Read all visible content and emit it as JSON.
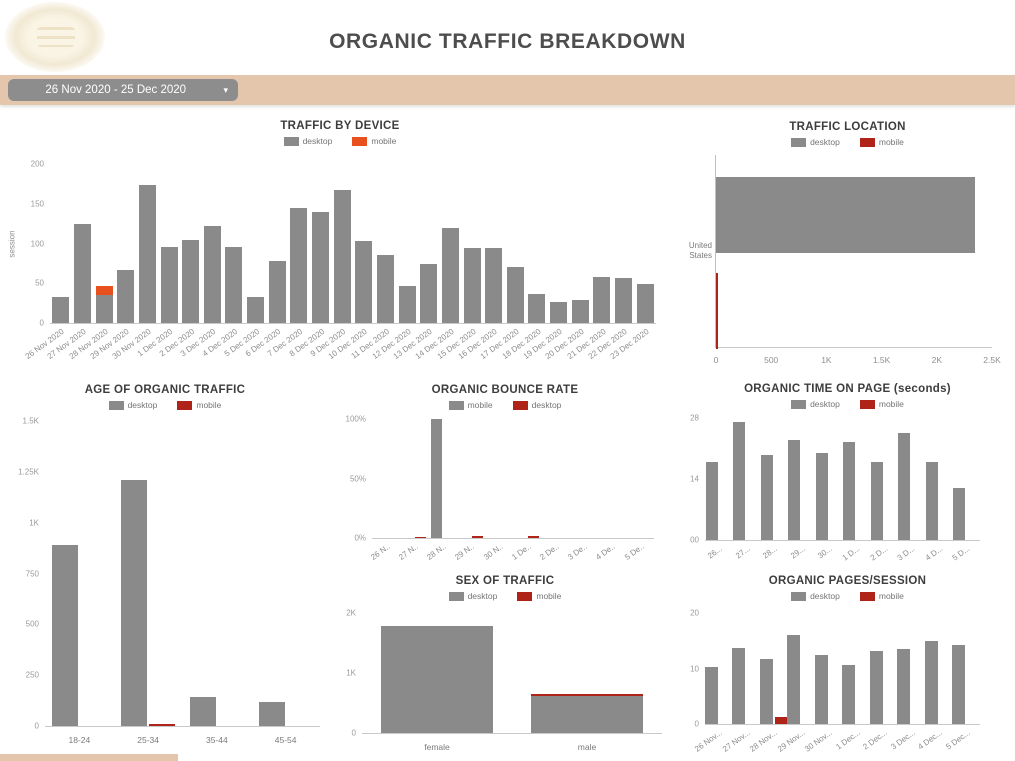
{
  "header": {
    "title": "ORGANIC TRAFFIC BREAKDOWN",
    "date_range": {
      "label": "26 Nov 2020 - 25 Dec 2020",
      "caret_icon": "▾"
    }
  },
  "colors": {
    "desktop_gray": "#8a8a8a",
    "mobile_orange": "#e8511e",
    "mobile_red": "#b02318",
    "band_tan": "#e3c6ac"
  },
  "chart_data": [
    {
      "id": "traffic_by_device",
      "type": "bar",
      "mode": "stacked",
      "title": "TRAFFIC BY DEVICE",
      "ylabel": "session",
      "ylim": [
        0,
        200
      ],
      "yticks": [
        {
          "label": "0",
          "v": 0
        },
        {
          "label": "50",
          "v": 50
        },
        {
          "label": "100",
          "v": 100
        },
        {
          "label": "150",
          "v": 150
        },
        {
          "label": "200",
          "v": 200
        }
      ],
      "categories": [
        "26 Nov 2020",
        "27 Nov 2020",
        "28 Nov 2020",
        "29 Nov 2020",
        "30 Nov 2020",
        "1 Dec 2020",
        "2 Dec 2020",
        "3 Dec 2020",
        "4 Dec 2020",
        "5 Dec 2020",
        "6 Dec 2020",
        "7 Dec 2020",
        "8 Dec 2020",
        "9 Dec 2020",
        "10 Dec 2020",
        "11 Dec 2020",
        "12 Dec 2020",
        "13 Dec 2020",
        "14 Dec 2020",
        "15 Dec 2020",
        "16 Dec 2020",
        "17 Dec 2020",
        "18 Dec 2020",
        "19 Dec 2020",
        "20 Dec 2020",
        "21 Dec 2020",
        "22 Dec 2020",
        "23 Dec 2020"
      ],
      "legend": [
        {
          "label": "desktop",
          "color": "#8a8a8a"
        },
        {
          "label": "mobile",
          "color": "#e8511e"
        }
      ],
      "series": [
        {
          "name": "desktop",
          "color": "#8a8a8a",
          "values": [
            33,
            125,
            35,
            67,
            174,
            96,
            105,
            122,
            96,
            33,
            78,
            145,
            140,
            167,
            103,
            85,
            46,
            74,
            120,
            94,
            94,
            70,
            37,
            26,
            29,
            58,
            57,
            49
          ]
        },
        {
          "name": "mobile",
          "color": "#e8511e",
          "values": [
            0,
            0,
            12,
            0,
            0,
            0,
            0,
            0,
            0,
            0,
            0,
            0,
            0,
            0,
            0,
            0,
            0,
            0,
            0,
            0,
            0,
            0,
            0,
            0,
            0,
            0,
            0,
            0
          ]
        }
      ]
    },
    {
      "id": "traffic_location",
      "type": "bar_horizontal",
      "title": "TRAFFIC LOCATION",
      "categories": [
        "United States"
      ],
      "xlim": [
        0,
        2500
      ],
      "xticks": [
        {
          "label": "0",
          "v": 0
        },
        {
          "label": "500",
          "v": 500
        },
        {
          "label": "1K",
          "v": 1000
        },
        {
          "label": "1.5K",
          "v": 1500
        },
        {
          "label": "2K",
          "v": 2000
        },
        {
          "label": "2.5K",
          "v": 2500
        }
      ],
      "legend": [
        {
          "label": "desktop",
          "color": "#8a8a8a"
        },
        {
          "label": "mobile",
          "color": "#b02318"
        }
      ],
      "series": [
        {
          "name": "desktop",
          "color": "#8a8a8a",
          "values": [
            2350
          ]
        },
        {
          "name": "mobile",
          "color": "#b02318",
          "values": [
            15
          ]
        }
      ]
    },
    {
      "id": "age_of_organic_traffic",
      "type": "bar",
      "mode": "grouped",
      "title": "AGE OF ORGANIC TRAFFIC",
      "ylim": [
        0,
        1500
      ],
      "yticks": [
        {
          "label": "0",
          "v": 0
        },
        {
          "label": "250",
          "v": 250
        },
        {
          "label": "500",
          "v": 500
        },
        {
          "label": "750",
          "v": 750
        },
        {
          "label": "1K",
          "v": 1000
        },
        {
          "label": "1.25K",
          "v": 1250
        },
        {
          "label": "1.5K",
          "v": 1500
        }
      ],
      "categories": [
        "18-24",
        "25-34",
        "35-44",
        "45-54"
      ],
      "legend": [
        {
          "label": "desktop",
          "color": "#8a8a8a"
        },
        {
          "label": "mobile",
          "color": "#b02318"
        }
      ],
      "series": [
        {
          "name": "desktop",
          "color": "#8a8a8a",
          "values": [
            890,
            1210,
            145,
            120
          ]
        },
        {
          "name": "mobile",
          "color": "#b02318",
          "values": [
            0,
            12,
            0,
            0
          ]
        }
      ]
    },
    {
      "id": "organic_bounce_rate",
      "type": "bar",
      "mode": "grouped",
      "title": "ORGANIC BOUNCE RATE",
      "ylim": [
        0,
        100
      ],
      "yticks": [
        {
          "label": "0%",
          "v": 0
        },
        {
          "label": "50%",
          "v": 50
        },
        {
          "label": "100%",
          "v": 100
        }
      ],
      "categories": [
        "26 N..",
        "27 N..",
        "28 N..",
        "29 N..",
        "30 N..",
        "1 De..",
        "2 De..",
        "3 De..",
        "4 De..",
        "5 De.."
      ],
      "legend": [
        {
          "label": "mobile",
          "color": "#8a8a8a"
        },
        {
          "label": "desktop",
          "color": "#b02318"
        }
      ],
      "series": [
        {
          "name": "mobile",
          "color": "#8a8a8a",
          "values": [
            0,
            0,
            100,
            0,
            0,
            0,
            0,
            0,
            0,
            0
          ]
        },
        {
          "name": "desktop",
          "color": "#b02318",
          "values": [
            0,
            0.8,
            0,
            1.5,
            0,
            2,
            0,
            0,
            0,
            0
          ]
        }
      ]
    },
    {
      "id": "sex_of_traffic",
      "type": "bar",
      "mode": "stacked",
      "title": "SEX OF TRAFFIC",
      "ylim": [
        0,
        2000
      ],
      "yticks": [
        {
          "label": "0",
          "v": 0
        },
        {
          "label": "1K",
          "v": 1000
        },
        {
          "label": "2K",
          "v": 2000
        }
      ],
      "categories": [
        "female",
        "male"
      ],
      "legend": [
        {
          "label": "desktop",
          "color": "#8a8a8a"
        },
        {
          "label": "mobile",
          "color": "#b02318"
        }
      ],
      "series": [
        {
          "name": "desktop",
          "color": "#8a8a8a",
          "values": [
            1780,
            620
          ]
        },
        {
          "name": "mobile",
          "color": "#b02318",
          "values": [
            0,
            25
          ]
        }
      ]
    },
    {
      "id": "organic_time_on_page",
      "type": "bar",
      "mode": "grouped",
      "title": "ORGANIC TIME ON PAGE (seconds)",
      "ylim": [
        0,
        28
      ],
      "yticks": [
        {
          "label": "00",
          "v": 0
        },
        {
          "label": "14",
          "v": 14
        },
        {
          "label": "28",
          "v": 28
        }
      ],
      "categories": [
        "26...",
        "27...",
        "28...",
        "29...",
        "30...",
        "1 D...",
        "2 D...",
        "3 D...",
        "4 D...",
        "5 D..."
      ],
      "legend": [
        {
          "label": "desktop",
          "color": "#8a8a8a"
        },
        {
          "label": "mobile",
          "color": "#b02318"
        }
      ],
      "series": [
        {
          "name": "desktop",
          "color": "#8a8a8a",
          "values": [
            18,
            27,
            19.5,
            23,
            20,
            22.5,
            18,
            24.5,
            18,
            12
          ]
        },
        {
          "name": "mobile",
          "color": "#b02318",
          "values": [
            0,
            0,
            0,
            0,
            0,
            0,
            0,
            0,
            0,
            0
          ]
        }
      ]
    },
    {
      "id": "organic_pages_session",
      "type": "bar",
      "mode": "grouped",
      "title": "ORGANIC PAGES/SESSION",
      "ylim": [
        0,
        20
      ],
      "yticks": [
        {
          "label": "0",
          "v": 0
        },
        {
          "label": "10",
          "v": 10
        },
        {
          "label": "20",
          "v": 20
        }
      ],
      "categories": [
        "26 Nov...",
        "27 Nov...",
        "28 Nov...",
        "29 Nov...",
        "30 Nov...",
        "1 Dec...",
        "2 Dec...",
        "3 Dec...",
        "4 Dec...",
        "5 Dec..."
      ],
      "legend": [
        {
          "label": "desktop",
          "color": "#8a8a8a"
        },
        {
          "label": "mobile",
          "color": "#b02318"
        }
      ],
      "series": [
        {
          "name": "desktop",
          "color": "#8a8a8a",
          "values": [
            10.3,
            13.7,
            11.8,
            16.1,
            12.4,
            10.7,
            13.1,
            13.5,
            15,
            14.2
          ]
        },
        {
          "name": "mobile",
          "color": "#b02318",
          "values": [
            0,
            0,
            1.2,
            0,
            0,
            0,
            0,
            0,
            0,
            0
          ]
        }
      ]
    }
  ]
}
